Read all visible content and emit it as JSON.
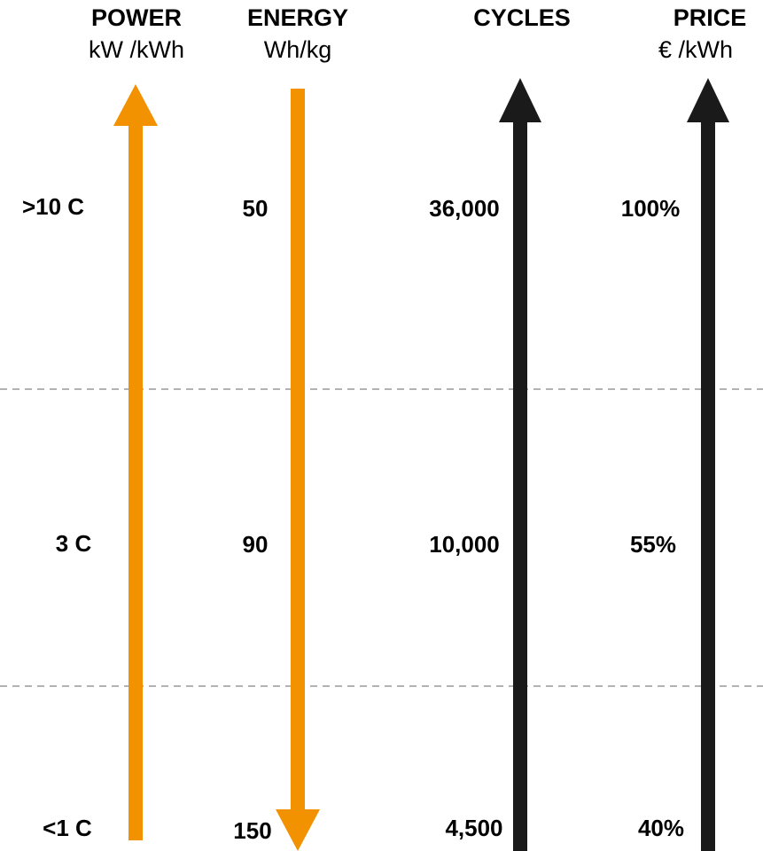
{
  "columns": [
    {
      "title": "POWER",
      "unit": "kW /kWh",
      "arrow": "up",
      "color": "#F39200",
      "values": [
        ">10 C",
        "3 C",
        "<1 C"
      ]
    },
    {
      "title": "ENERGY",
      "unit": "Wh/kg",
      "arrow": "down",
      "color": "#F39200",
      "values": [
        "50",
        "90",
        "150"
      ]
    },
    {
      "title": "CYCLES",
      "unit": "",
      "arrow": "up",
      "color": "#1a1a1a",
      "values": [
        "36,000",
        "10,000",
        "4,500"
      ]
    },
    {
      "title": "PRICE",
      "unit": "€ /kWh",
      "arrow": "up",
      "color": "#1a1a1a",
      "values": [
        "100%",
        "55%",
        "40%"
      ]
    }
  ],
  "colors": {
    "accent": "#F39200",
    "dark": "#1a1a1a",
    "divider": "#999999"
  }
}
